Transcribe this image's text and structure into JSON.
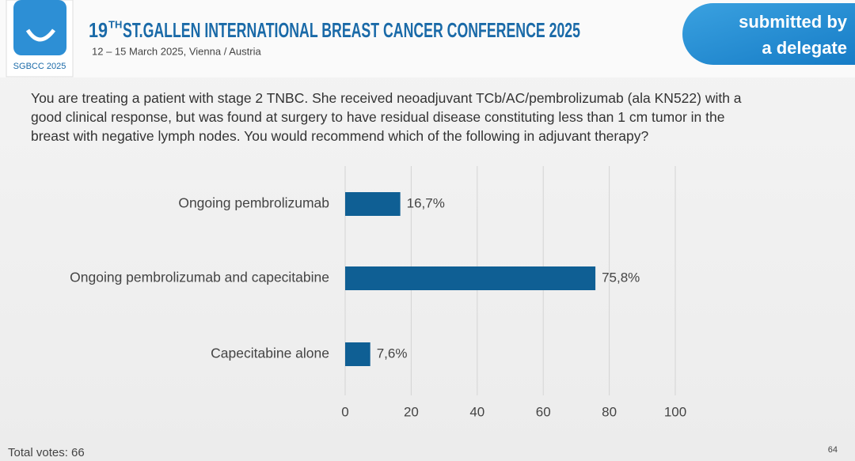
{
  "header": {
    "logo_text": "SGBCC 2025",
    "title_number": "19",
    "title_suffix": "TH",
    "title_text": "ST.GALLEN INTERNATIONAL BREAST CANCER CONFERENCE 2025",
    "subtitle": "12 – 15 March 2025, Vienna / Austria",
    "badge_line1": "submitted by",
    "badge_line2": "a delegate"
  },
  "question": "You are treating a patient with stage 2 TNBC.  She received neoadjuvant TCb/AC/pembrolizumab (ala KN522) with a good clinical response, but was found at surgery to have residual disease constituting less than 1 cm tumor in the breast with negative lymph nodes.  You would recommend which of the following in adjuvant therapy?",
  "chart_data": {
    "type": "hbar",
    "categories": [
      "Ongoing pembrolizumab",
      "Ongoing pembrolizumab and capecitabine",
      "Capecitabine alone"
    ],
    "values": [
      16.7,
      75.8,
      7.6
    ],
    "value_labels": [
      "16,7%",
      "75,8%",
      "7,6%"
    ],
    "color": "#0f5f94",
    "xlim": [
      0,
      100
    ],
    "xticks": [
      0,
      20,
      40,
      60,
      80,
      100
    ],
    "grid": true
  },
  "footer": {
    "total_votes": "Total votes: 66",
    "page_number": "64"
  }
}
